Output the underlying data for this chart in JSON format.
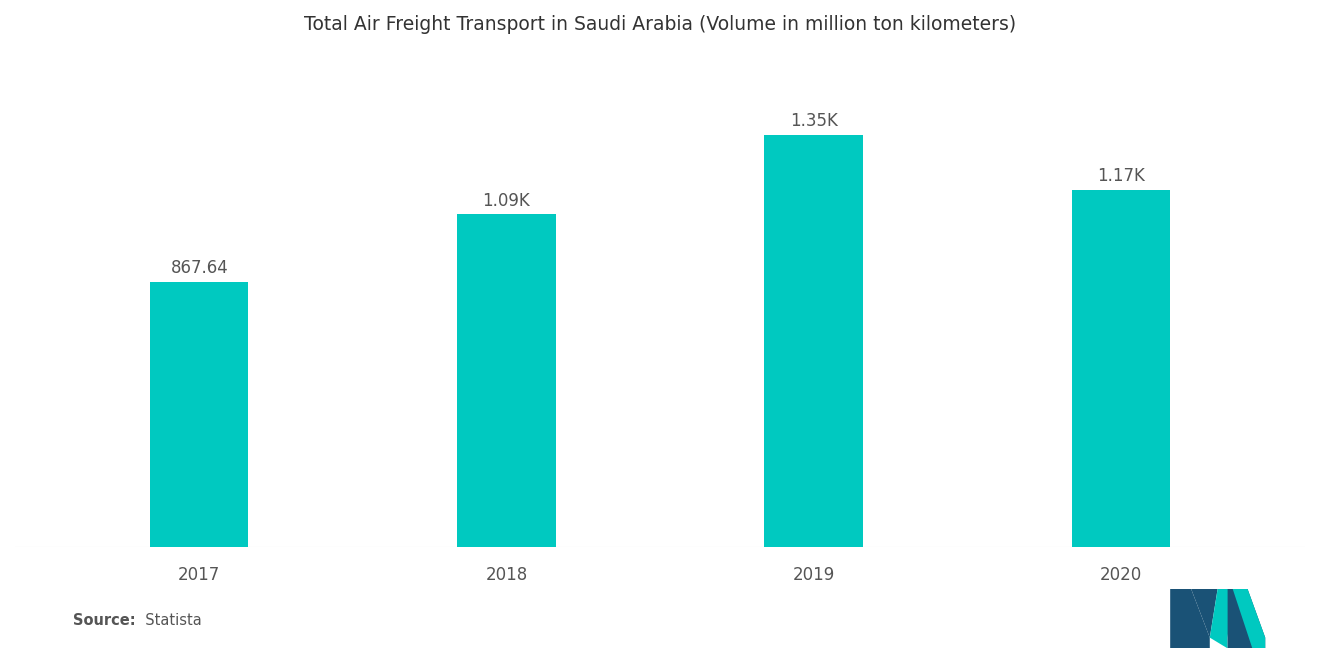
{
  "title": "Total Air Freight Transport in Saudi Arabia (Volume in million ton kilometers)",
  "categories": [
    "2017",
    "2018",
    "2019",
    "2020"
  ],
  "values": [
    867.64,
    1090,
    1350,
    1170
  ],
  "labels": [
    "867.64",
    "1.09K",
    "1.35K",
    "1.17K"
  ],
  "bar_color": "#00C9C0",
  "background_color": "#ffffff",
  "title_fontsize": 13.5,
  "label_fontsize": 12,
  "tick_fontsize": 12,
  "source_bold": "Source:",
  "source_normal": "  Statista",
  "ylim": [
    0,
    1580
  ],
  "bar_width": 0.32,
  "xlim": [
    -0.6,
    3.6
  ]
}
